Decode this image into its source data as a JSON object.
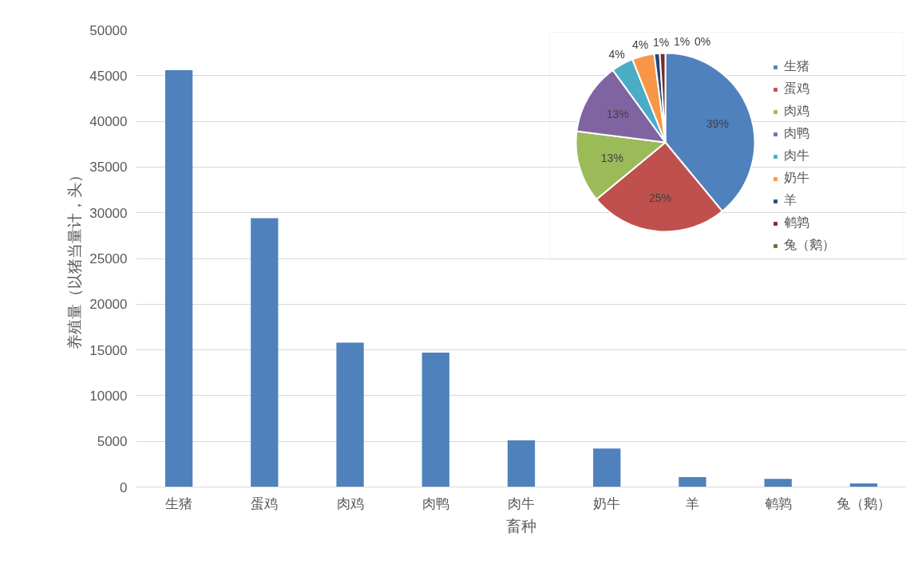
{
  "chart_data": [
    {
      "type": "bar",
      "xlabel": "畜种",
      "ylabel": "养殖量（以猪当量计，头）",
      "categories": [
        "生猪",
        "蛋鸡",
        "肉鸡",
        "肉鸭",
        "肉牛",
        "奶牛",
        "羊",
        "鹌鹑",
        "兔（鹅）"
      ],
      "values": [
        45600,
        29400,
        15800,
        14700,
        5100,
        4200,
        1100,
        900,
        400
      ],
      "color": "#4f81bd",
      "ylim": [
        0,
        50000
      ],
      "yticks": [
        0,
        5000,
        10000,
        15000,
        20000,
        25000,
        30000,
        35000,
        40000,
        45000,
        50000
      ],
      "grid": "y"
    },
    {
      "type": "pie",
      "categories": [
        "生猪",
        "蛋鸡",
        "肉鸡",
        "肉鸭",
        "肉牛",
        "奶牛",
        "羊",
        "鹌鹑",
        "兔（鹅）"
      ],
      "values": [
        39,
        25,
        13,
        13,
        4,
        4,
        1,
        1,
        0
      ],
      "colors": [
        "#4f81bd",
        "#c0504d",
        "#9bbb59",
        "#8064a2",
        "#4bacc6",
        "#f79646",
        "#1f497d",
        "#772c2a",
        "#5f7530"
      ],
      "value_labels": [
        "39%",
        "25%",
        "13%",
        "13%",
        "4%",
        "4%",
        "1%",
        "1%",
        "0%"
      ],
      "legend": "right"
    }
  ]
}
